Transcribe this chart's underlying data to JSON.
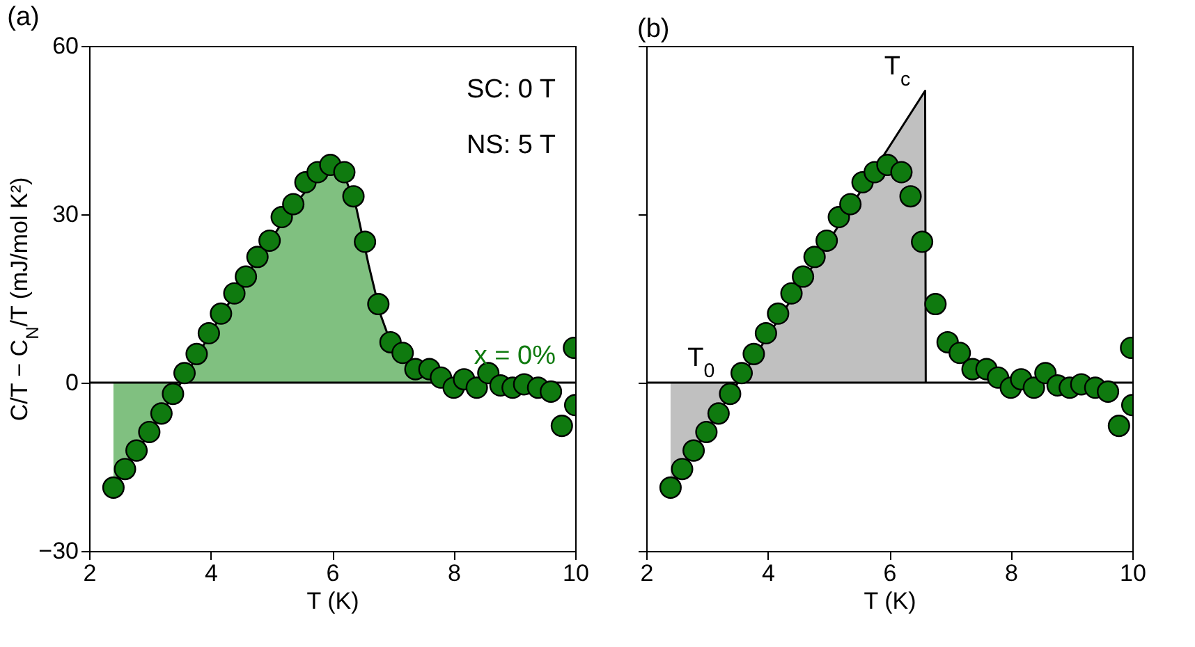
{
  "chart_data": [
    {
      "type": "scatter",
      "title": "(a)",
      "xlabel": "T (K)",
      "ylabel": "C/T − C$_{N}$/T (mJ/mol K²)",
      "xlim": [
        2,
        10
      ],
      "xticks": [
        2,
        4,
        6,
        8,
        10
      ],
      "ylim": [
        -30,
        60
      ],
      "yticks": [
        -30,
        0,
        30,
        60
      ],
      "annotations": [
        "SC: 0 T",
        "NS: 5 T"
      ],
      "ref_lines": [
        {
          "axis": "y",
          "value": 0,
          "color": "#000000"
        }
      ],
      "series": [
        {
          "type": "area",
          "color": "#80c080",
          "x": [
            2.4,
            3.0,
            3.6,
            4.2,
            4.8,
            5.4,
            5.8,
            6.0,
            6.2,
            6.4,
            6.6,
            6.8,
            7.0,
            7.3,
            7.6,
            7.9
          ],
          "values": [
            -18.7,
            -8.8,
            1.5,
            12.5,
            22.5,
            32,
            37,
            38,
            37,
            31,
            21,
            12,
            6,
            3,
            1,
            0
          ]
        },
        {
          "name": "x = 0%",
          "color": "#0f7a0f",
          "marker": "circle",
          "x": [
            2.4,
            2.59,
            2.78,
            2.99,
            3.19,
            3.38,
            3.57,
            3.77,
            3.97,
            4.17,
            4.39,
            4.58,
            4.77,
            4.97,
            5.17,
            5.36,
            5.56,
            5.76,
            5.97,
            6.2,
            6.35,
            6.54,
            6.76,
            6.96,
            7.16,
            7.37,
            7.6,
            7.79,
            8.0,
            8.17,
            8.38,
            8.57,
            8.77,
            8.97,
            9.16,
            9.39,
            9.6,
            9.78,
            9.98,
            10.0
          ],
          "values": [
            -18.7,
            -15.4,
            -12.1,
            -8.8,
            -5.5,
            -2.0,
            1.7,
            5.1,
            8.8,
            12.3,
            15.9,
            18.9,
            22.4,
            25.3,
            29.5,
            31.8,
            35.7,
            37.5,
            38.8,
            37.5,
            33.2,
            25.1,
            14.0,
            7.2,
            5.3,
            2.4,
            2.4,
            0.9,
            -0.9,
            0.6,
            -0.9,
            1.7,
            -0.5,
            -0.9,
            -0.3,
            -0.9,
            -1.6,
            -7.7,
            6.2,
            -4.0
          ]
        }
      ]
    },
    {
      "type": "scatter",
      "title": "(b)",
      "xlabel": "T (K)",
      "xlim": [
        2,
        10
      ],
      "xticks": [
        2,
        4,
        6,
        8,
        10
      ],
      "ylim": [
        -30,
        60
      ],
      "yticks": [
        -30,
        0,
        30,
        60
      ],
      "tick_labels": "x",
      "annotations": [
        {
          "text": "T$_{c}$",
          "x": 6.59,
          "y": 52
        },
        {
          "text": "T$_{0}$",
          "x": 2.4,
          "y": 0
        }
      ],
      "ref_lines": [
        {
          "axis": "y",
          "value": 0,
          "color": "#000000"
        }
      ],
      "series": [
        {
          "type": "area",
          "color": "#c0c0c0",
          "x": [
            2.4,
            6.59,
            6.6
          ],
          "values": [
            -18.7,
            52,
            0
          ]
        },
        {
          "color": "#0f7a0f",
          "marker": "circle",
          "x": [
            2.4,
            2.59,
            2.78,
            2.99,
            3.19,
            3.38,
            3.57,
            3.77,
            3.97,
            4.17,
            4.39,
            4.58,
            4.77,
            4.97,
            5.17,
            5.36,
            5.56,
            5.76,
            5.97,
            6.2,
            6.35,
            6.54,
            6.76,
            6.96,
            7.16,
            7.37,
            7.6,
            7.79,
            8.0,
            8.17,
            8.38,
            8.57,
            8.77,
            8.97,
            9.16,
            9.39,
            9.6,
            9.78,
            9.98,
            10.0
          ],
          "values": [
            -18.7,
            -15.4,
            -12.1,
            -8.8,
            -5.5,
            -2.0,
            1.7,
            5.1,
            8.8,
            12.3,
            15.9,
            18.9,
            22.4,
            25.3,
            29.5,
            31.8,
            35.7,
            37.5,
            38.8,
            37.5,
            33.2,
            25.1,
            14.0,
            7.2,
            5.3,
            2.4,
            2.4,
            0.9,
            -0.9,
            0.6,
            -0.9,
            1.7,
            -0.5,
            -0.9,
            -0.3,
            -0.9,
            -1.6,
            -7.7,
            6.2,
            -4.0
          ]
        }
      ]
    }
  ]
}
